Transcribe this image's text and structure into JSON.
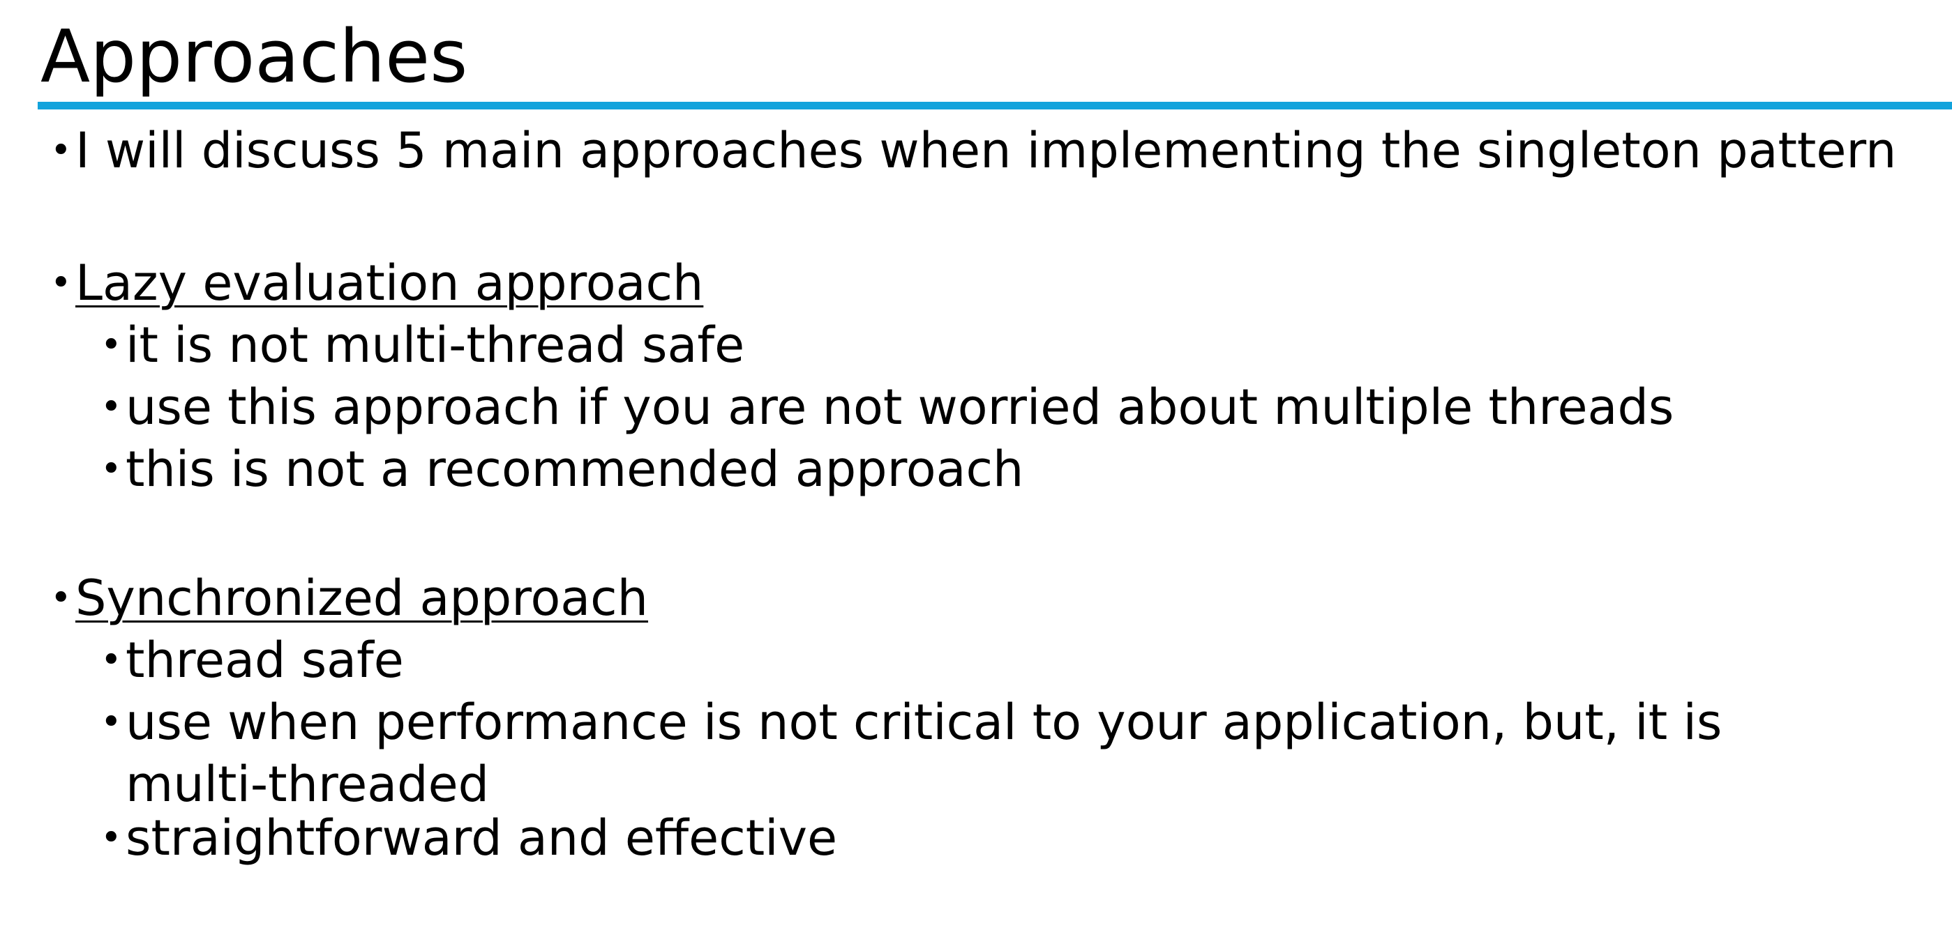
{
  "slide": {
    "title": "Approaches",
    "intro": "I will discuss 5 main approaches when implementing the singleton pattern",
    "sections": [
      {
        "heading": "Lazy evaluation approach",
        "items": [
          "it is not multi-thread safe",
          "use this approach if you are not worried about multiple threads",
          "this is not a recommended approach"
        ]
      },
      {
        "heading": "Synchronized approach",
        "items": [
          "thread safe",
          "use when performance is not critical to your application, but, it is multi-threaded",
          "straightforward and effective"
        ]
      }
    ],
    "bullet_glyph": "•",
    "accent_color": "#12a3dc"
  }
}
